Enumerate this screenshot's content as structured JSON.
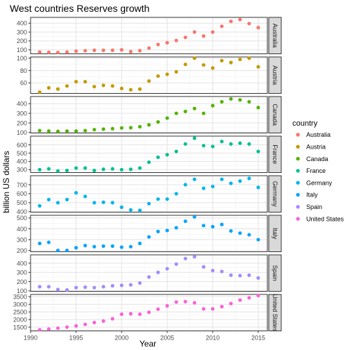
{
  "chart_data": {
    "type": "scatter",
    "title": "West countries Reserves growth",
    "xlabel": "Year",
    "ylabel": "billion US dollars",
    "x": [
      1991,
      1992,
      1993,
      1994,
      1995,
      1996,
      1997,
      1998,
      1999,
      2000,
      2001,
      2002,
      2003,
      2004,
      2005,
      2006,
      2007,
      2008,
      2009,
      2010,
      2011,
      2012,
      2013,
      2014,
      2015
    ],
    "xlim": [
      1990,
      2016
    ],
    "xticks": [
      1990,
      1995,
      2000,
      2005,
      2010,
      2015
    ],
    "legend": {
      "title": "country",
      "placement": "right"
    },
    "grid": true,
    "series": [
      {
        "name": "Australia",
        "color": "#F8766D",
        "yticks": [
          100,
          200,
          300,
          400
        ],
        "ylim": [
          55,
          465
        ],
        "values": [
          75,
          72,
          70,
          75,
          85,
          90,
          95,
          95,
          95,
          100,
          80,
          90,
          120,
          160,
          180,
          205,
          240,
          300,
          255,
          300,
          365,
          420,
          440,
          395,
          350
        ]
      },
      {
        "name": "Austria",
        "color": "#C49A00",
        "yticks": [
          60,
          80,
          100
        ],
        "ylim": [
          43,
          102
        ],
        "values": [
          45,
          52,
          50,
          55,
          62,
          62,
          54,
          56,
          55,
          51,
          49,
          50,
          63,
          71,
          74,
          78,
          90,
          100,
          89,
          84,
          96,
          93,
          98,
          100,
          86
        ]
      },
      {
        "name": "Canada",
        "color": "#53B400",
        "yticks": [
          100,
          200,
          300,
          400
        ],
        "ylim": [
          95,
          475
        ],
        "values": [
          120,
          115,
          112,
          115,
          115,
          120,
          130,
          135,
          140,
          148,
          150,
          160,
          180,
          210,
          250,
          300,
          320,
          350,
          300,
          380,
          420,
          450,
          440,
          420,
          360
        ]
      },
      {
        "name": "France",
        "color": "#00C094",
        "yticks": [
          300,
          400,
          500,
          600
        ],
        "ylim": [
          265,
          705
        ],
        "values": [
          300,
          310,
          285,
          290,
          320,
          320,
          290,
          305,
          310,
          300,
          305,
          320,
          390,
          450,
          480,
          520,
          610,
          680,
          590,
          580,
          640,
          610,
          620,
          610,
          520
        ]
      },
      {
        "name": "Germany",
        "color": "#00B6EB",
        "yticks": [
          400,
          500,
          600,
          700
        ],
        "ylim": [
          395,
          800
        ],
        "values": [
          465,
          535,
          500,
          535,
          610,
          570,
          500,
          505,
          500,
          450,
          420,
          415,
          490,
          540,
          540,
          600,
          700,
          760,
          660,
          680,
          760,
          715,
          740,
          770,
          670
        ]
      },
      {
        "name": "Italy",
        "color": "#06A4FF",
        "yticks": [
          200,
          300,
          400,
          500
        ],
        "ylim": [
          188,
          525
        ],
        "values": [
          265,
          275,
          200,
          200,
          225,
          245,
          235,
          240,
          240,
          230,
          235,
          265,
          325,
          375,
          385,
          410,
          470,
          510,
          430,
          420,
          440,
          380,
          360,
          345,
          300
        ]
      },
      {
        "name": "Spain",
        "color": "#A58AFF",
        "yticks": [
          100,
          200,
          300,
          400
        ],
        "ylim": [
          95,
          490
        ],
        "values": [
          145,
          145,
          115,
          110,
          135,
          140,
          135,
          145,
          155,
          160,
          165,
          185,
          250,
          300,
          340,
          390,
          450,
          470,
          360,
          320,
          310,
          270,
          265,
          270,
          240
        ]
      },
      {
        "name": "United States",
        "color": "#FB61D7",
        "yticks": [
          1500,
          2000,
          2500,
          3000,
          3500
        ],
        "ylim": [
          1250,
          3650
        ],
        "values": [
          1320,
          1370,
          1430,
          1500,
          1580,
          1680,
          1800,
          1900,
          2050,
          2350,
          2380,
          2350,
          2480,
          2680,
          2900,
          3150,
          3180,
          3100,
          2700,
          2700,
          2850,
          3050,
          3280,
          3430,
          3580
        ]
      }
    ]
  }
}
